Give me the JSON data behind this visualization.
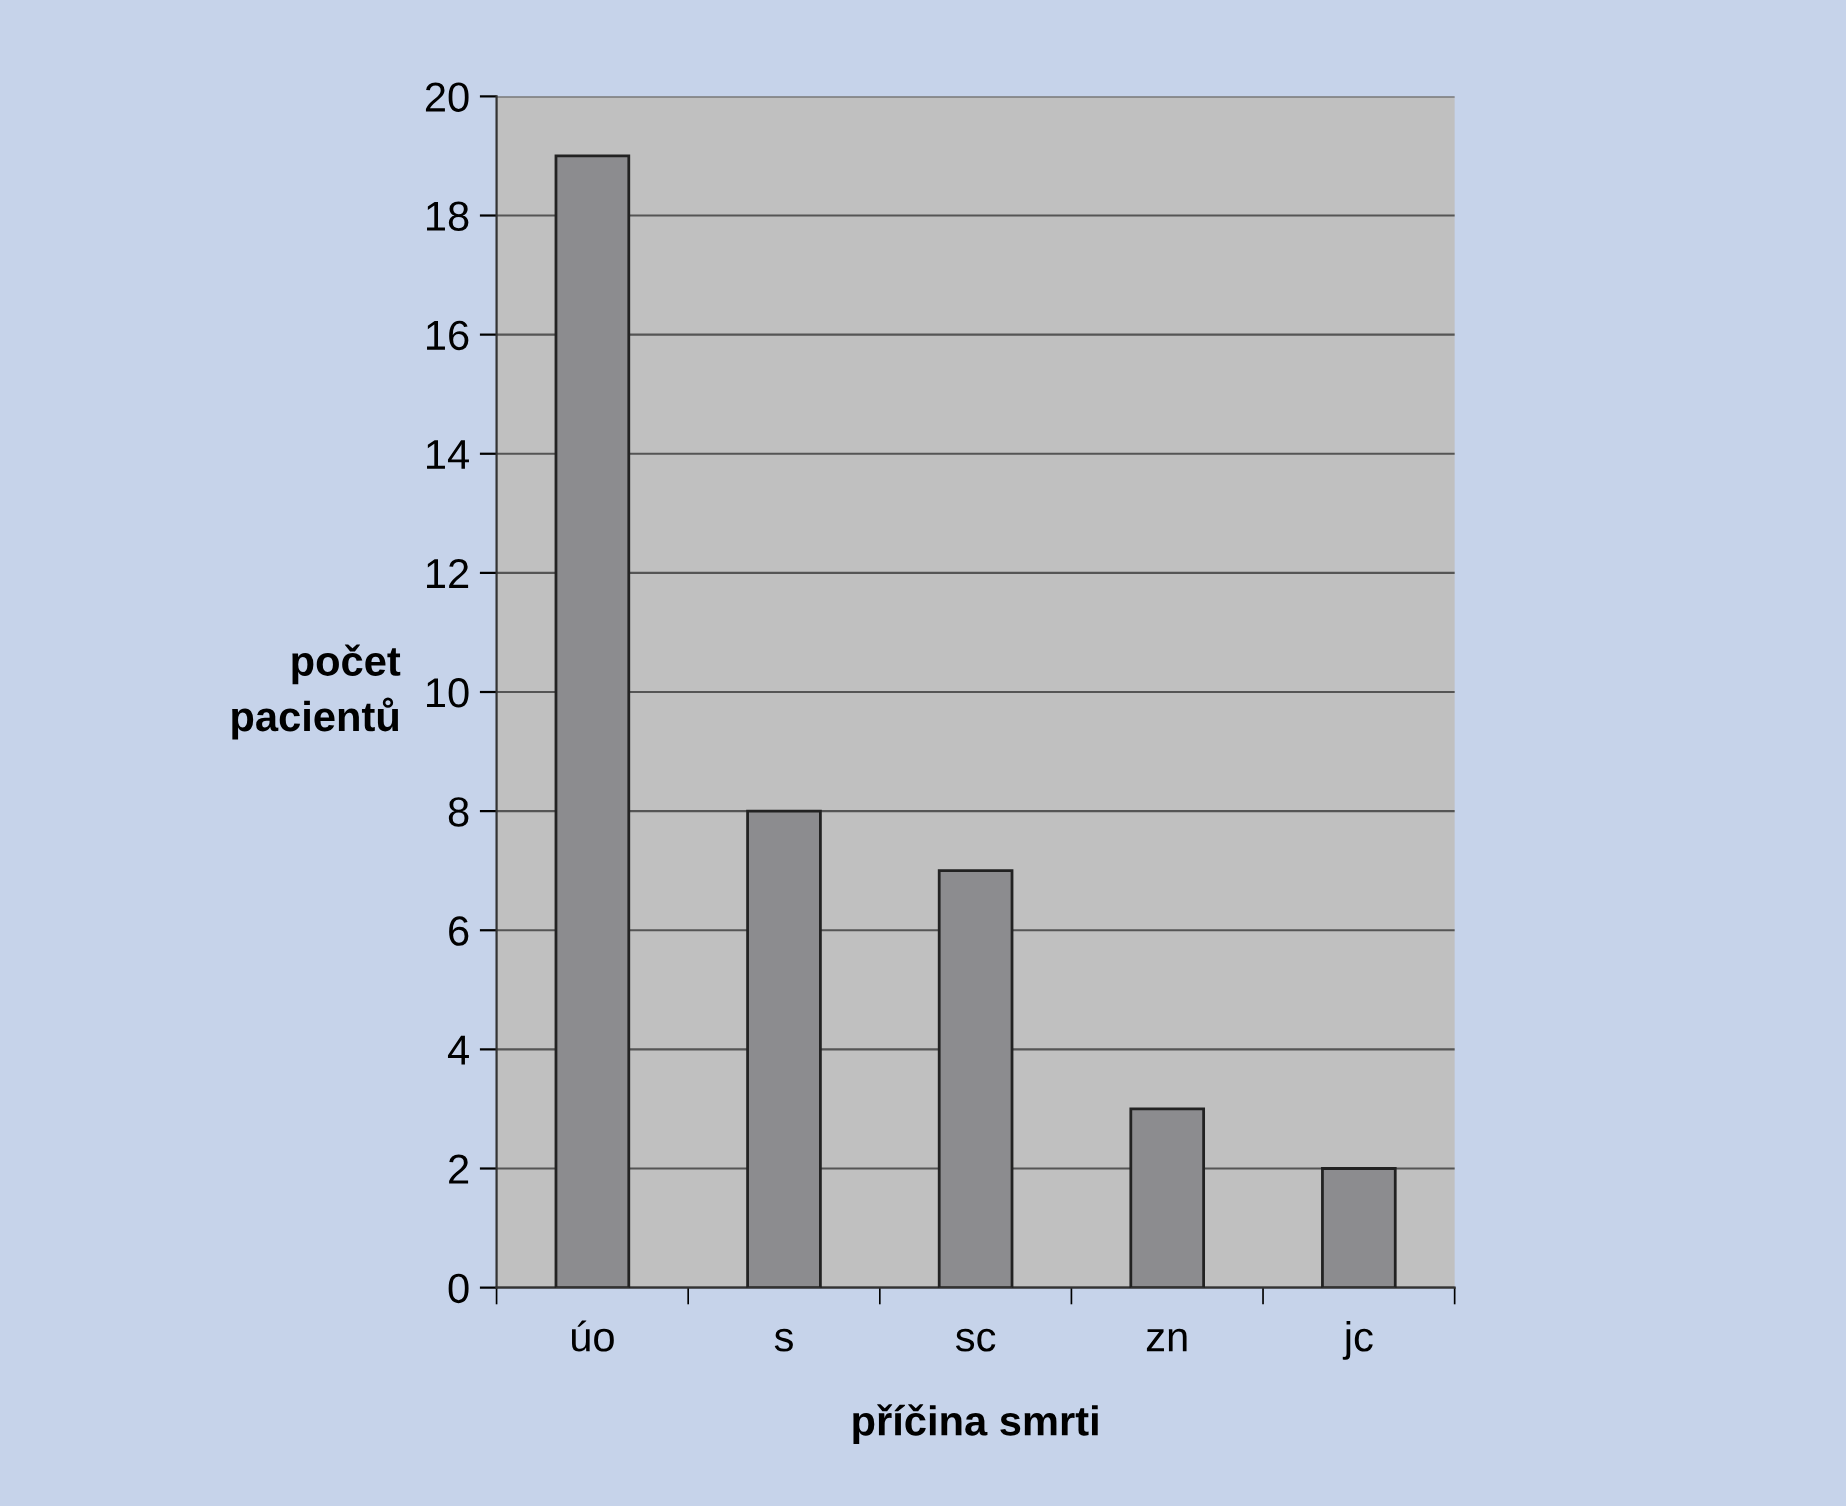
{
  "chart_data": {
    "type": "bar",
    "xlabel": "příčina smrti",
    "ylabel": "počet pacientů",
    "categories": [
      "úo",
      "s",
      "sc",
      "zn",
      "jc"
    ],
    "values": [
      19,
      8,
      7,
      3,
      2
    ],
    "color": "#8c8c8f",
    "ylim": [
      0,
      20
    ],
    "yticks": [
      0,
      2,
      4,
      6,
      8,
      10,
      12,
      14,
      16,
      18,
      20
    ],
    "grid": "y",
    "legend": false
  }
}
